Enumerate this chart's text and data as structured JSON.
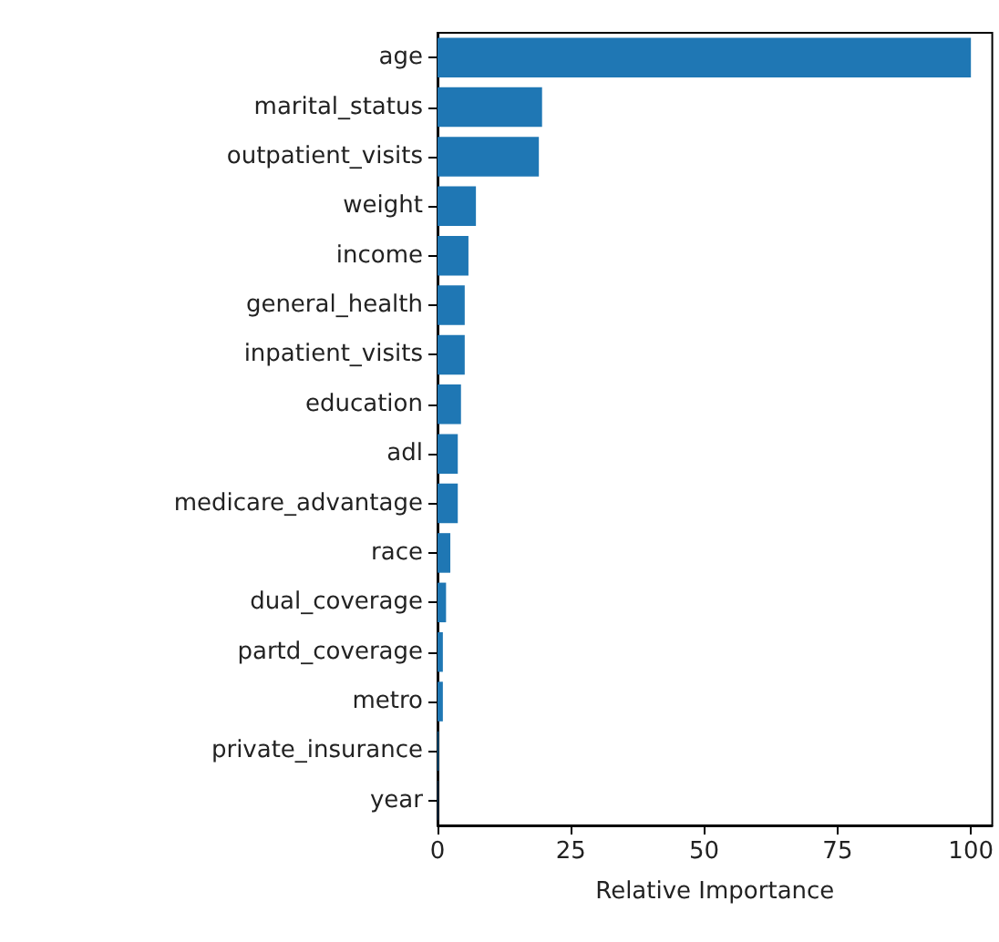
{
  "chart_data": {
    "type": "bar",
    "orientation": "horizontal",
    "xlabel": "Relative Importance",
    "categories": [
      "age",
      "marital_status",
      "outpatient_visits",
      "weight",
      "income",
      "general_health",
      "inpatient_visits",
      "education",
      "adl",
      "medicare_advantage",
      "race",
      "dual_coverage",
      "partd_coverage",
      "metro",
      "private_insurance",
      "year"
    ],
    "values": [
      100,
      19.6,
      19.0,
      7.2,
      5.8,
      5.1,
      5.1,
      4.4,
      3.8,
      3.8,
      2.4,
      1.6,
      1.0,
      1.0,
      0.2,
      0.1
    ],
    "color": "#1f77b4",
    "xlim": [
      0,
      104
    ],
    "xticks": [
      0,
      25,
      50,
      75,
      100
    ],
    "grid": false
  }
}
